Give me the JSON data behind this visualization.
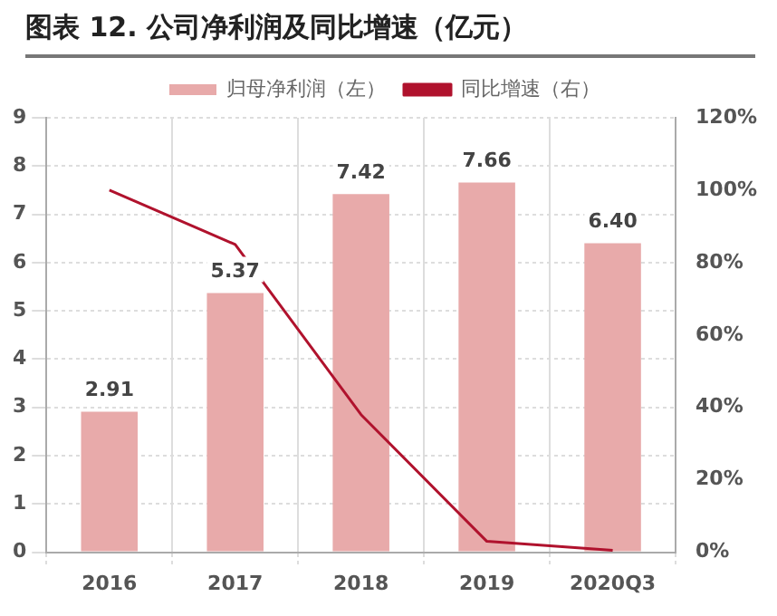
{
  "chart_data": {
    "type": "bar",
    "title": "图表 12. 公司净利润及同比增速（亿元）",
    "categories": [
      "2016",
      "2017",
      "2018",
      "2019",
      "2020Q3"
    ],
    "series": [
      {
        "name": "归母净利润（左）",
        "color": "#e8aaaa",
        "values": [
          2.91,
          5.37,
          7.42,
          7.66,
          6.4
        ],
        "value_labels": [
          "2.91",
          "5.37",
          "7.42",
          "7.66",
          "6.40"
        ]
      },
      {
        "name": "同比增速（右）",
        "type": "line",
        "axis": "y2",
        "color": "#b0122d",
        "values": [
          100,
          85,
          38,
          3,
          0.5
        ]
      }
    ],
    "ylim": [
      0,
      9
    ],
    "yticks": [
      0,
      1,
      2,
      3,
      4,
      5,
      6,
      7,
      8,
      9
    ],
    "y2lim": [
      0,
      120
    ],
    "y2ticks": [
      {
        "value": 0,
        "label": "0%"
      },
      {
        "value": 20,
        "label": "20%"
      },
      {
        "value": 40,
        "label": "40%"
      },
      {
        "value": 60,
        "label": "60%"
      },
      {
        "value": 80,
        "label": "80%"
      },
      {
        "value": 100,
        "label": "100%"
      },
      {
        "value": 120,
        "label": "120%"
      }
    ],
    "grid": true,
    "legend": "top",
    "marker": "none",
    "line_style": "solid"
  }
}
